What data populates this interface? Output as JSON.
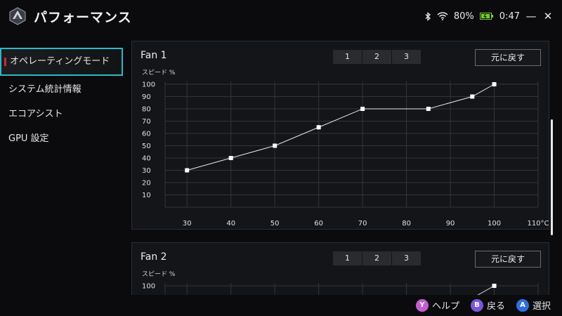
{
  "app": {
    "title": "パフォーマンス"
  },
  "status": {
    "battery": "80%",
    "time": "0:47"
  },
  "sidebar": {
    "items": [
      {
        "label": "オペレーティングモード"
      },
      {
        "label": "システム統計情報"
      },
      {
        "label": "エコアシスト"
      },
      {
        "label": "GPU 設定"
      }
    ]
  },
  "fans": [
    {
      "title": "Fan 1",
      "tabs": [
        "1",
        "2",
        "3"
      ],
      "reset_label": "元に戻す",
      "y_label": "スピード %",
      "x_unit": "110°C"
    },
    {
      "title": "Fan 2",
      "tabs": [
        "1",
        "2",
        "3"
      ],
      "reset_label": "元に戻す",
      "y_label": "スピード %"
    }
  ],
  "chart_data": [
    {
      "type": "line",
      "title": "Fan 1",
      "ylabel": "スピード %",
      "xlabel": "",
      "x_ticks": [
        "30",
        "40",
        "50",
        "60",
        "70",
        "80",
        "90",
        "100",
        "110°C"
      ],
      "y_ticks": [
        "100",
        "90",
        "80",
        "70",
        "60",
        "50",
        "40",
        "30",
        "20",
        "10"
      ],
      "xlim": [
        25,
        110
      ],
      "ylim": [
        0,
        100
      ],
      "grid": true,
      "series": [
        {
          "x": [
            30,
            40,
            50,
            60,
            70,
            85,
            95,
            100
          ],
          "y": [
            30,
            40,
            50,
            65,
            80,
            80,
            90,
            100
          ]
        }
      ]
    },
    {
      "type": "line",
      "title": "Fan 2",
      "ylabel": "スピード %",
      "y_ticks": [
        "100"
      ],
      "xlim": [
        25,
        110
      ],
      "ylim": [
        0,
        100
      ],
      "grid": true,
      "series": [
        {
          "x": [
            95,
            100
          ],
          "y": [
            90,
            100
          ]
        }
      ]
    }
  ],
  "footer": {
    "hints": [
      {
        "key": "Y",
        "label": "ヘルプ",
        "color": "#c25fd0"
      },
      {
        "key": "B",
        "label": "戻る",
        "color": "#7a57d8"
      },
      {
        "key": "A",
        "label": "選択",
        "color": "#2f6fe0"
      }
    ]
  },
  "colors": {
    "accent": "#2fb8c9",
    "active_marker": "#d4233a",
    "battery": "#74d12a"
  }
}
